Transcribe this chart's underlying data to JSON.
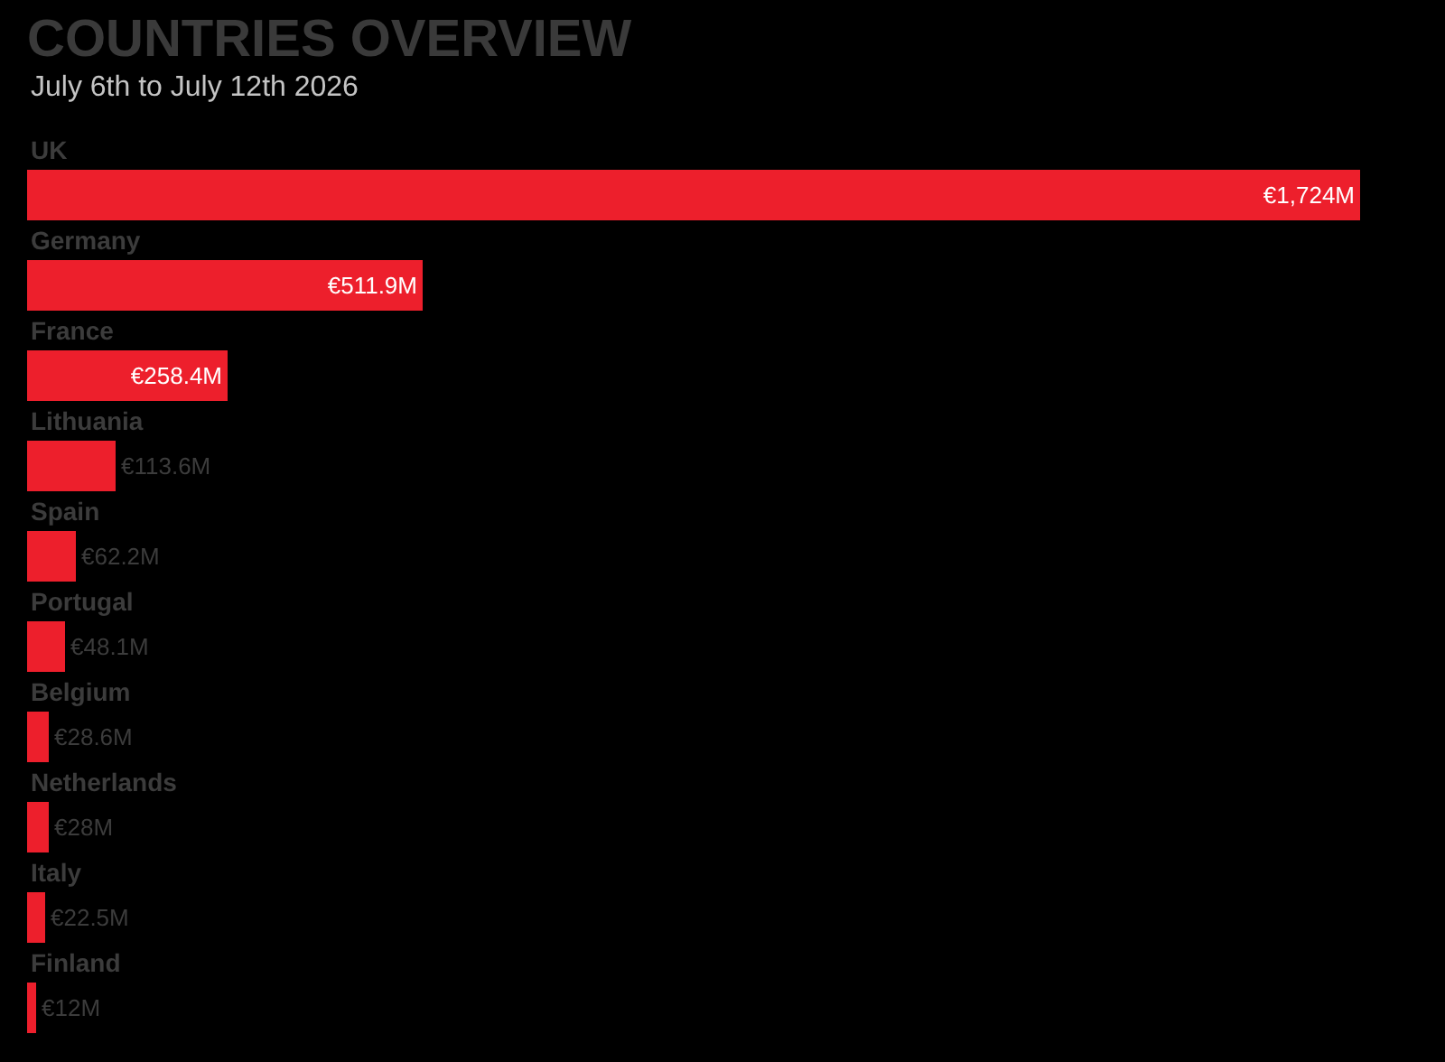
{
  "chart_data": {
    "type": "bar",
    "orientation": "horizontal",
    "title": "COUNTRIES OVERVIEW",
    "subtitle": "July 6th to July 12th 2026",
    "categories": [
      "UK",
      "Germany",
      "France",
      "Lithuania",
      "Spain",
      "Portugal",
      "Belgium",
      "Netherlands",
      "Italy",
      "Finland"
    ],
    "values": [
      1724,
      511.9,
      258.4,
      113.6,
      62.2,
      48.1,
      28.6,
      28,
      22.5,
      12
    ],
    "value_labels": [
      "€1,724M",
      "€511.9M",
      "€258.4M",
      "€113.6M",
      "€62.2M",
      "€48.1M",
      "€28.6M",
      "€28M",
      "€22.5M",
      "€12M"
    ],
    "color": "#ed1f2c"
  }
}
